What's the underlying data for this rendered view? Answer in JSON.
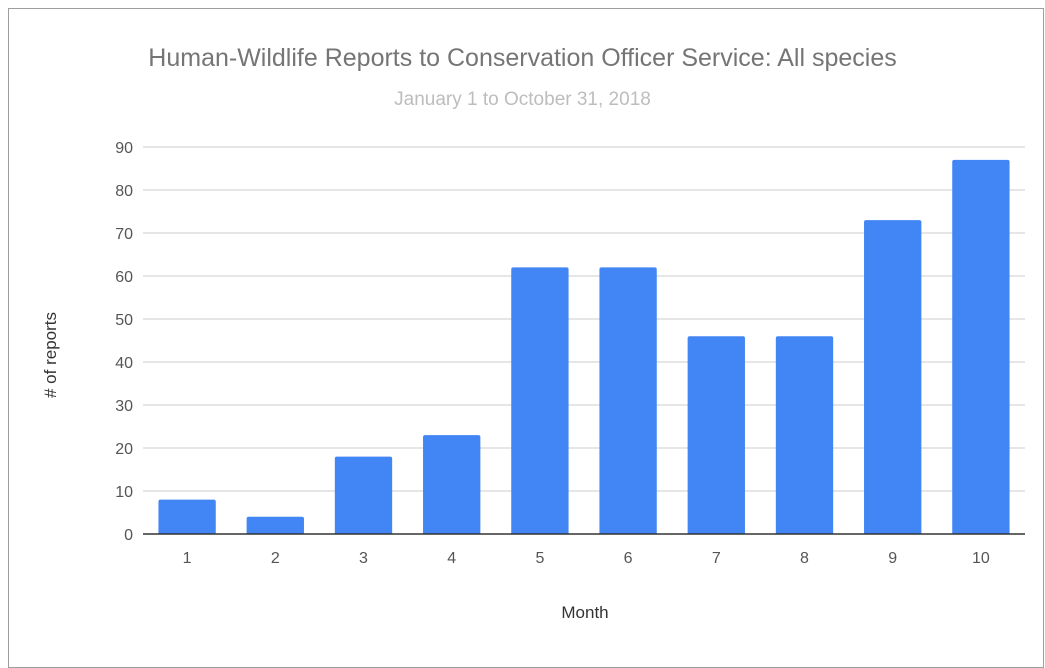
{
  "chart_data": {
    "type": "bar",
    "title": "Human-Wildlife Reports to Conservation Officer Service: All species",
    "subtitle": "January 1 to October 31, 2018",
    "xlabel": "Month",
    "ylabel": "# of reports",
    "categories": [
      "1",
      "2",
      "3",
      "4",
      "5",
      "6",
      "7",
      "8",
      "9",
      "10"
    ],
    "values": [
      8,
      4,
      18,
      23,
      62,
      62,
      46,
      46,
      73,
      87
    ],
    "ylim": [
      0,
      90
    ],
    "yticks": [
      0,
      10,
      20,
      30,
      40,
      50,
      60,
      70,
      80,
      90
    ],
    "grid": true,
    "legend": "none",
    "bar_color": "#4285f4",
    "grid_color": "#cccccc",
    "axis_color": "#333333"
  }
}
